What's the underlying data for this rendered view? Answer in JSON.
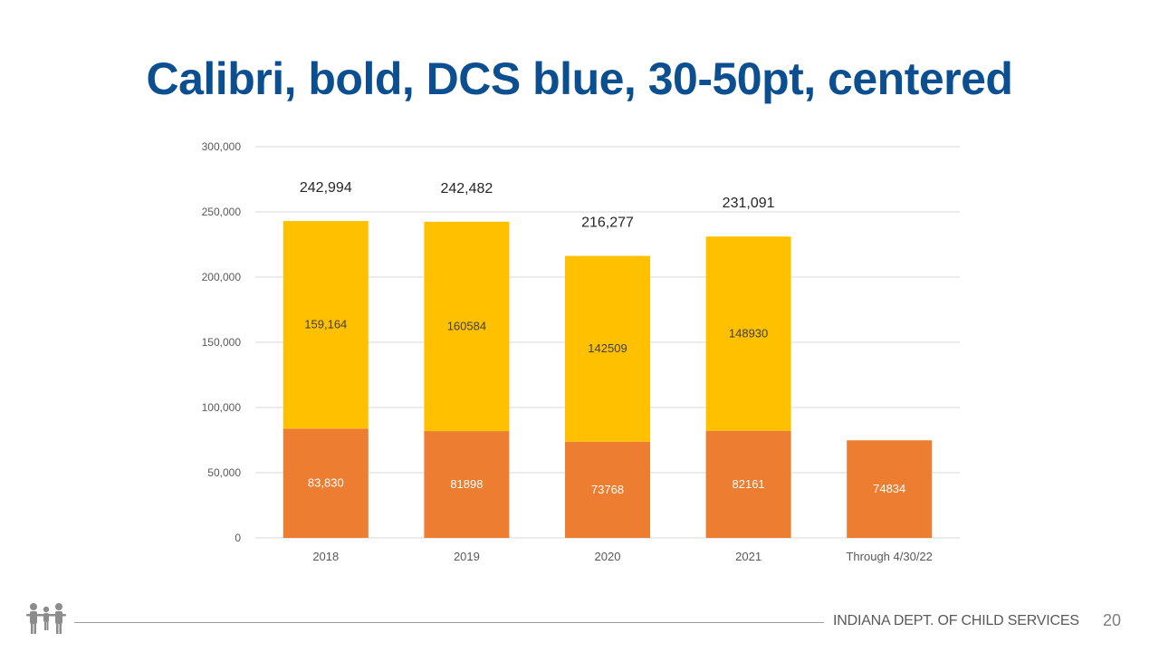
{
  "slide": {
    "title": "Calibri, bold, DCS blue, 30-50pt, centered",
    "footer_org": "INDIANA DEPT. OF CHILD SERVICES",
    "page_number": "20",
    "logo_icon": "family-figures-icon"
  },
  "colors": {
    "title": "#0B4F91",
    "series_bottom": "#ED7D31",
    "series_top": "#FFC000",
    "grid": "#d9d9d9"
  },
  "chart_data": {
    "type": "bar",
    "stacked": true,
    "categories": [
      "2018",
      "2019",
      "2020",
      "2021",
      "Through 4/30/22"
    ],
    "series": [
      {
        "values": [
          83830,
          81898,
          73768,
          82161,
          74834
        ],
        "labels": [
          "83,830",
          "81898",
          "73768",
          "82161",
          "74834"
        ],
        "color": "#ED7D31"
      },
      {
        "values": [
          159164,
          160584,
          142509,
          148930,
          null
        ],
        "labels": [
          "159,164",
          "160584",
          "142509",
          "148930",
          ""
        ],
        "color": "#FFC000"
      }
    ],
    "totals": [
      242994,
      242482,
      216277,
      231091,
      null
    ],
    "total_labels": [
      "242,994",
      "242,482",
      "216,277",
      "231,091",
      ""
    ],
    "ylim": [
      0,
      300000
    ],
    "yticks": [
      0,
      50000,
      100000,
      150000,
      200000,
      250000,
      300000
    ],
    "ytick_labels": [
      "0",
      "50,000",
      "100,000",
      "150,000",
      "200,000",
      "250,000",
      "300,000"
    ],
    "grid": true,
    "legend": "none",
    "xlabel": "",
    "ylabel": ""
  }
}
